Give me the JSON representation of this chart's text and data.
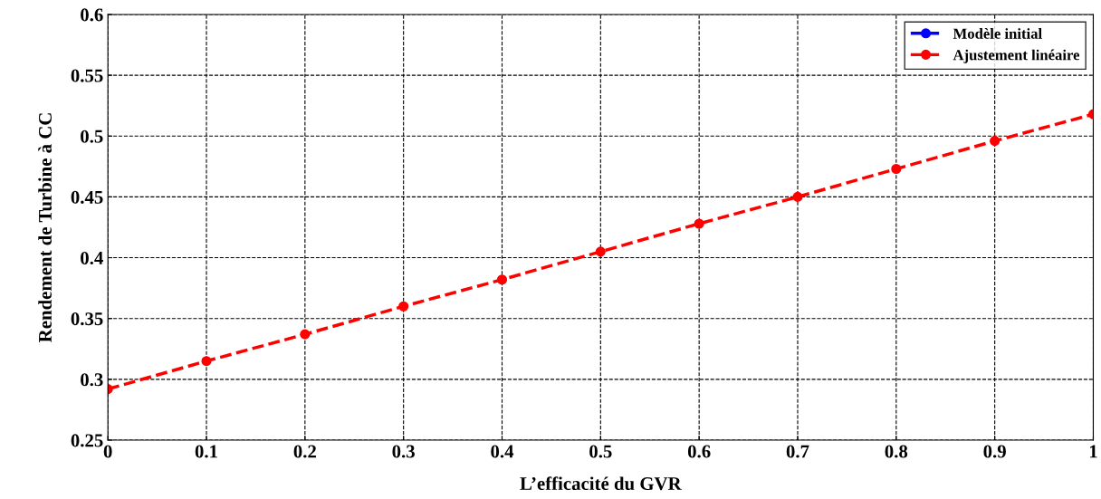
{
  "chart_data": {
    "type": "line",
    "xlabel": "L’efficacité du GVR",
    "ylabel": "Rendement de Turbine à CC",
    "x": [
      0,
      0.1,
      0.2,
      0.3,
      0.4,
      0.5,
      0.6,
      0.7,
      0.8,
      0.9,
      1
    ],
    "series": [
      {
        "name": "Modèle initial",
        "color": "#0000ff",
        "values": [
          null,
          null,
          null,
          null,
          null,
          null,
          null,
          null,
          null,
          null,
          null
        ]
      },
      {
        "name": "Ajustement linéaire",
        "color": "#ff0000",
        "values": [
          0.292,
          0.315,
          0.337,
          0.36,
          0.382,
          0.405,
          0.428,
          0.45,
          0.473,
          0.496,
          0.518
        ]
      }
    ],
    "xlim": [
      0,
      1
    ],
    "xticks": [
      0,
      0.1,
      0.2,
      0.3,
      0.4,
      0.5,
      0.6,
      0.7,
      0.8,
      0.9,
      1
    ],
    "ylim": [
      0.25,
      0.6
    ],
    "yticks": [
      0.25,
      0.3,
      0.35,
      0.4,
      0.45,
      0.5,
      0.55,
      0.6
    ],
    "grid": true,
    "legend": "top right",
    "marker": "circle",
    "line_style": "dashed"
  }
}
